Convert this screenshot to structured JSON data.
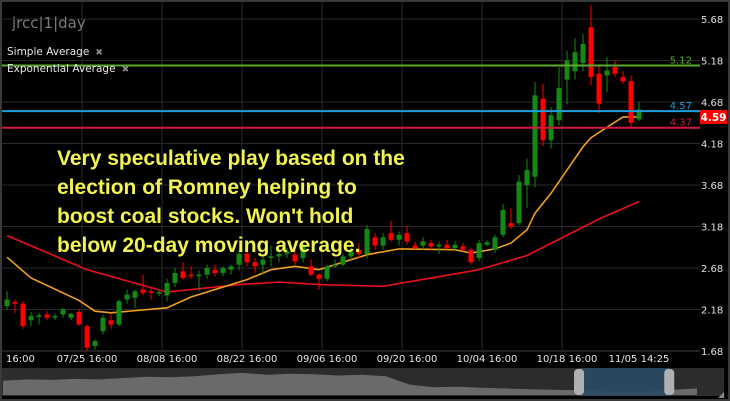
{
  "symbol_label": "jrcc|1|day",
  "legend": [
    {
      "label": "Simple Average",
      "close_icon": "x-icon"
    },
    {
      "label": "Exponential Average",
      "close_icon": "x-icon"
    }
  ],
  "annotation": [
    "Very speculative play based on the",
    "election of Romney helping to",
    "boost coal stocks. Won't hold",
    "below 20-day moving average."
  ],
  "colors": {
    "up": "#138a13",
    "down": "#ff0000",
    "sma": "#e8101a",
    "ema": "#f0a020",
    "level_green": "#5aaa28",
    "level_blue": "#1aa0e0",
    "level_red": "#d01840",
    "last_price_badge": "#ff0000",
    "annotation": "#f2f250",
    "navigator_selection": "#2a4a66"
  },
  "chart_data": {
    "type": "candlestick",
    "title": "jrcc|1|day",
    "y_ticks": [
      "5.68",
      "5.18",
      "4.68",
      "4.18",
      "3.68",
      "3.18",
      "2.68",
      "2.18",
      "1.68"
    ],
    "ylim": [
      1.68,
      5.68
    ],
    "grid": true,
    "x_ticks": [
      {
        "label": "16:00",
        "candle": 2
      },
      {
        "label": "07/25 16:00",
        "candle": 10
      },
      {
        "label": "08/08 16:00",
        "candle": 20
      },
      {
        "label": "08/22 16:00",
        "candle": 30
      },
      {
        "label": "09/06 16:00",
        "candle": 40
      },
      {
        "label": "09/20 16:00",
        "candle": 50
      },
      {
        "label": "10/04 16:00",
        "candle": 60
      },
      {
        "label": "10/18 16:00",
        "candle": 70
      },
      {
        "label": "11/05 14:25",
        "candle": 79
      }
    ],
    "ohlc": [
      [
        2.22,
        2.4,
        2.18,
        2.3
      ],
      [
        2.27,
        2.3,
        2.14,
        2.25
      ],
      [
        2.25,
        2.28,
        1.95,
        1.98
      ],
      [
        2.05,
        2.15,
        1.98,
        2.1
      ],
      [
        2.1,
        2.14,
        2.0,
        2.11
      ],
      [
        2.12,
        2.16,
        2.05,
        2.08
      ],
      [
        2.09,
        2.13,
        2.05,
        2.1
      ],
      [
        2.12,
        2.2,
        2.08,
        2.18
      ],
      [
        2.08,
        2.14,
        2.05,
        2.13
      ],
      [
        2.15,
        2.18,
        1.98,
        2.0
      ],
      [
        1.98,
        2.0,
        1.68,
        1.72
      ],
      [
        1.74,
        1.82,
        1.7,
        1.8
      ],
      [
        1.92,
        2.12,
        1.88,
        2.08
      ],
      [
        2.05,
        2.12,
        1.95,
        2.0
      ],
      [
        2.0,
        2.3,
        1.98,
        2.28
      ],
      [
        2.3,
        2.42,
        2.25,
        2.36
      ],
      [
        2.32,
        2.42,
        2.2,
        2.4
      ],
      [
        2.42,
        2.6,
        2.35,
        2.38
      ],
      [
        2.4,
        2.45,
        2.3,
        2.38
      ],
      [
        2.38,
        2.42,
        2.34,
        2.39
      ],
      [
        2.35,
        2.55,
        2.28,
        2.5
      ],
      [
        2.5,
        2.68,
        2.45,
        2.62
      ],
      [
        2.64,
        2.75,
        2.54,
        2.56
      ],
      [
        2.6,
        2.7,
        2.55,
        2.58
      ],
      [
        2.58,
        2.65,
        2.4,
        2.6
      ],
      [
        2.6,
        2.72,
        2.55,
        2.68
      ],
      [
        2.66,
        2.72,
        2.58,
        2.62
      ],
      [
        2.62,
        2.7,
        2.58,
        2.68
      ],
      [
        2.66,
        2.72,
        2.6,
        2.7
      ],
      [
        2.72,
        2.9,
        2.65,
        2.85
      ],
      [
        2.85,
        2.95,
        2.7,
        2.75
      ],
      [
        2.75,
        2.8,
        2.62,
        2.7
      ],
      [
        2.72,
        2.85,
        2.6,
        2.78
      ],
      [
        2.8,
        2.95,
        2.7,
        2.82
      ],
      [
        2.82,
        2.9,
        2.75,
        2.85
      ],
      [
        2.85,
        2.92,
        2.8,
        2.88
      ],
      [
        2.84,
        2.9,
        2.72,
        2.76
      ],
      [
        2.8,
        3.0,
        2.75,
        2.95
      ],
      [
        2.7,
        2.78,
        2.58,
        2.6
      ],
      [
        2.6,
        2.62,
        2.42,
        2.55
      ],
      [
        2.55,
        2.72,
        2.52,
        2.7
      ],
      [
        2.7,
        2.78,
        2.68,
        2.72
      ],
      [
        2.72,
        2.85,
        2.7,
        2.82
      ],
      [
        2.82,
        2.92,
        2.78,
        2.88
      ],
      [
        2.9,
        2.98,
        2.8,
        2.85
      ],
      [
        2.85,
        3.2,
        2.8,
        3.15
      ],
      [
        3.05,
        3.1,
        2.9,
        2.95
      ],
      [
        2.95,
        3.1,
        2.9,
        3.05
      ],
      [
        3.1,
        3.25,
        3.0,
        3.02
      ],
      [
        3.02,
        3.12,
        2.95,
        3.08
      ],
      [
        3.1,
        3.18,
        2.96,
        3.0
      ],
      [
        2.95,
        3.0,
        2.9,
        2.92
      ],
      [
        2.95,
        3.05,
        2.9,
        3.0
      ],
      [
        2.98,
        3.02,
        2.9,
        2.94
      ],
      [
        2.94,
        3.0,
        2.85,
        2.96
      ],
      [
        2.96,
        3.02,
        2.9,
        2.92
      ],
      [
        2.92,
        3.0,
        2.88,
        2.96
      ],
      [
        2.94,
        2.98,
        2.88,
        2.9
      ],
      [
        2.9,
        2.92,
        2.72,
        2.75
      ],
      [
        2.8,
        3.02,
        2.76,
        2.98
      ],
      [
        2.96,
        3.02,
        2.94,
        2.99
      ],
      [
        2.9,
        3.08,
        2.86,
        3.05
      ],
      [
        3.08,
        3.45,
        3.05,
        3.38
      ],
      [
        3.22,
        3.4,
        3.15,
        3.18
      ],
      [
        3.22,
        3.8,
        3.2,
        3.72
      ],
      [
        3.68,
        4.0,
        3.4,
        3.86
      ],
      [
        3.78,
        4.92,
        3.65,
        4.76
      ],
      [
        4.72,
        4.9,
        4.15,
        4.22
      ],
      [
        4.22,
        4.62,
        4.12,
        4.52
      ],
      [
        4.46,
        5.1,
        4.4,
        4.85
      ],
      [
        4.95,
        5.3,
        4.65,
        5.18
      ],
      [
        5.05,
        5.45,
        4.95,
        5.28
      ],
      [
        5.15,
        5.5,
        5.05,
        5.38
      ],
      [
        5.58,
        5.85,
        4.88,
        4.98
      ],
      [
        5.02,
        5.12,
        4.55,
        4.66
      ],
      [
        5.0,
        5.22,
        4.8,
        5.06
      ],
      [
        5.1,
        5.18,
        4.98,
        5.02
      ],
      [
        4.98,
        5.05,
        4.9,
        4.93
      ],
      [
        4.93,
        5.0,
        4.38,
        4.43
      ],
      [
        4.47,
        4.68,
        4.45,
        4.59
      ]
    ],
    "series": [
      {
        "name": "Simple Average",
        "points": [
          [
            0,
            3.07
          ],
          [
            10,
            2.66
          ],
          [
            20,
            2.39
          ],
          [
            29,
            2.48
          ],
          [
            34,
            2.51
          ],
          [
            39,
            2.48
          ],
          [
            47,
            2.46
          ],
          [
            59,
            2.66
          ],
          [
            65,
            2.83
          ],
          [
            74,
            3.27
          ],
          [
            79,
            3.48
          ]
        ]
      },
      {
        "name": "Exponential Average",
        "points": [
          [
            0,
            2.81
          ],
          [
            3,
            2.56
          ],
          [
            9,
            2.29
          ],
          [
            11,
            2.16
          ],
          [
            13,
            2.14
          ],
          [
            20,
            2.2
          ],
          [
            23,
            2.33
          ],
          [
            30,
            2.54
          ],
          [
            33,
            2.66
          ],
          [
            36,
            2.7
          ],
          [
            39,
            2.66
          ],
          [
            45,
            2.84
          ],
          [
            49,
            2.91
          ],
          [
            56,
            2.9
          ],
          [
            58,
            2.86
          ],
          [
            61,
            2.91
          ],
          [
            63,
            2.98
          ],
          [
            65,
            3.14
          ],
          [
            66,
            3.34
          ],
          [
            68,
            3.58
          ],
          [
            72,
            4.14
          ],
          [
            73,
            4.25
          ],
          [
            77,
            4.5
          ],
          [
            79,
            4.5
          ]
        ]
      }
    ],
    "levels": [
      {
        "value": 5.12,
        "label": "5.12",
        "color_key": "level_green"
      },
      {
        "value": 4.57,
        "label": "4.57",
        "color_key": "level_blue"
      },
      {
        "value": 4.37,
        "label": "4.37",
        "color_key": "level_red"
      }
    ],
    "last_price": "4.59",
    "navigator_values": [
      0.55,
      0.6,
      0.58,
      0.62,
      0.6,
      0.65,
      0.7,
      0.68,
      0.72,
      0.8,
      0.85,
      0.78,
      0.82,
      0.8,
      0.75,
      0.78,
      0.72,
      0.4,
      0.3,
      0.32,
      0.28,
      0.25,
      0.22,
      0.2,
      0.18,
      0.15,
      0.12,
      0.14,
      0.2,
      0.25
    ],
    "navigator_selection": [
      0.83,
      0.96
    ]
  }
}
